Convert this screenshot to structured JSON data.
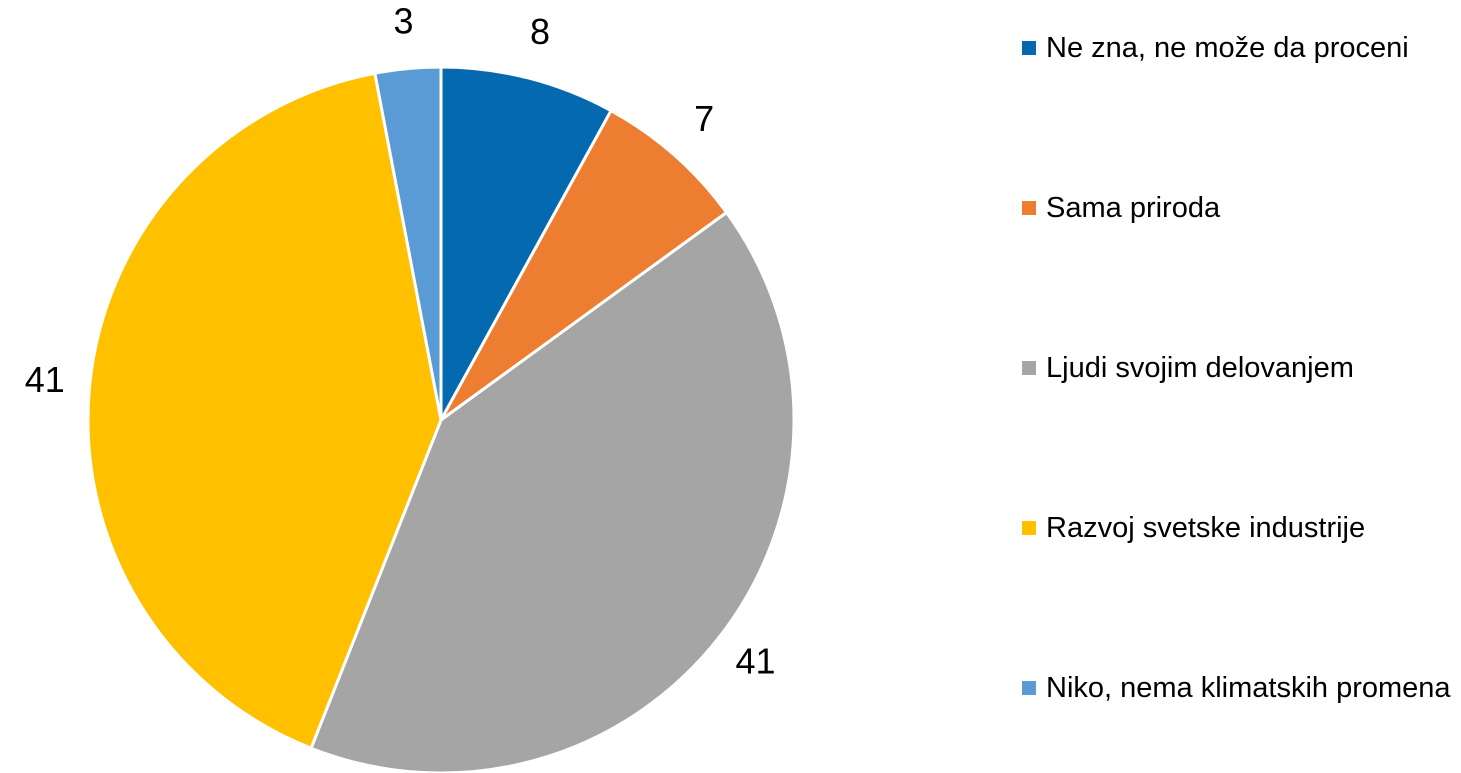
{
  "chart_data": {
    "type": "pie",
    "categories": [
      "Ne zna, ne može da proceni",
      "Sama priroda",
      "Ljudi svojim delovanjem",
      "Razvoj svetske industrije",
      "Niko, nema klimatskih promena"
    ],
    "values": [
      8,
      7,
      41,
      41,
      3
    ],
    "colors": [
      "#0569b0",
      "#ed7d31",
      "#a5a5a5",
      "#ffc000",
      "#5b9bd5"
    ],
    "legend": "right"
  }
}
